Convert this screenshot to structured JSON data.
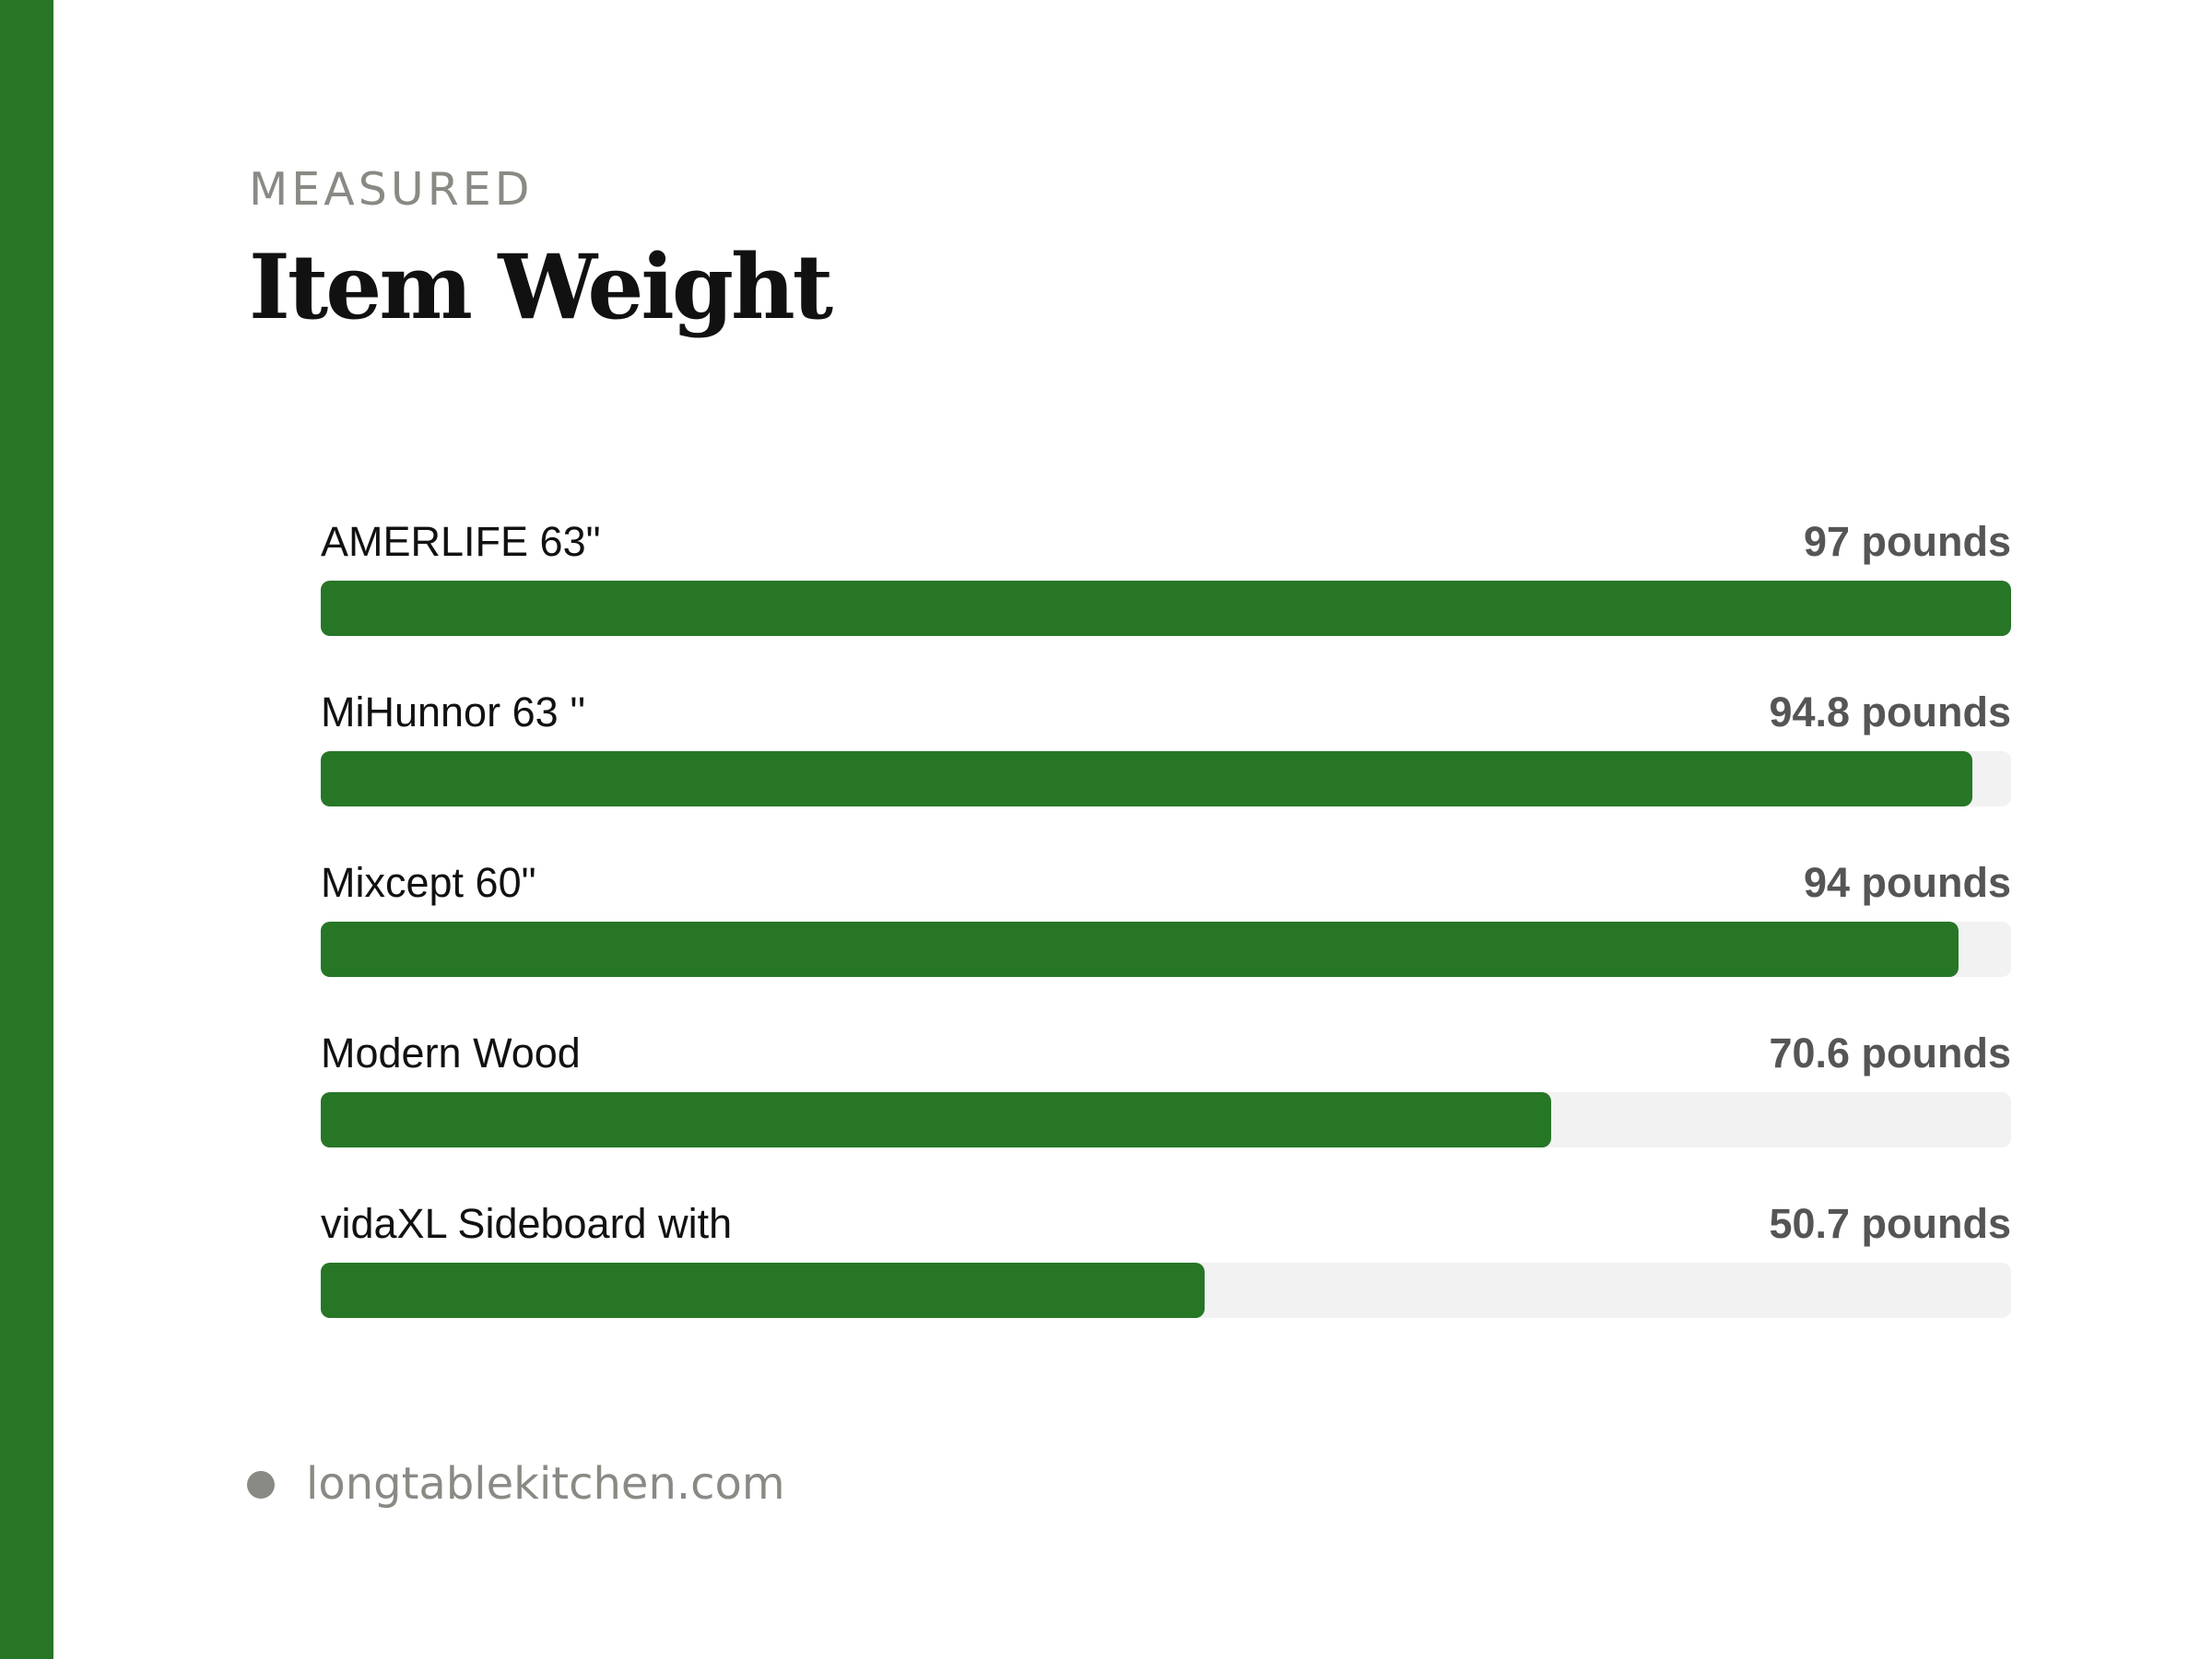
{
  "colors": {
    "accent": "#267626",
    "track": "#f2f2f2"
  },
  "header": {
    "eyebrow": "MEASURED",
    "title": "Item Weight"
  },
  "chart_data": {
    "type": "bar",
    "orientation": "horizontal",
    "title": "Item Weight",
    "unit": "pounds",
    "xlim": [
      0,
      97
    ],
    "grid": false,
    "categories": [
      "AMERLIFE 63\"",
      "MiHunnor 63 ''",
      "Mixcept 60\"",
      "Modern Wood",
      "vidaXL Sideboard with"
    ],
    "values": [
      97,
      94.8,
      94,
      70.6,
      50.7
    ],
    "value_labels": [
      "97 pounds",
      "94.8 pounds",
      "94 pounds",
      "70.6 pounds",
      "50.7 pounds"
    ]
  },
  "footer": {
    "source": "longtablekitchen.com"
  }
}
